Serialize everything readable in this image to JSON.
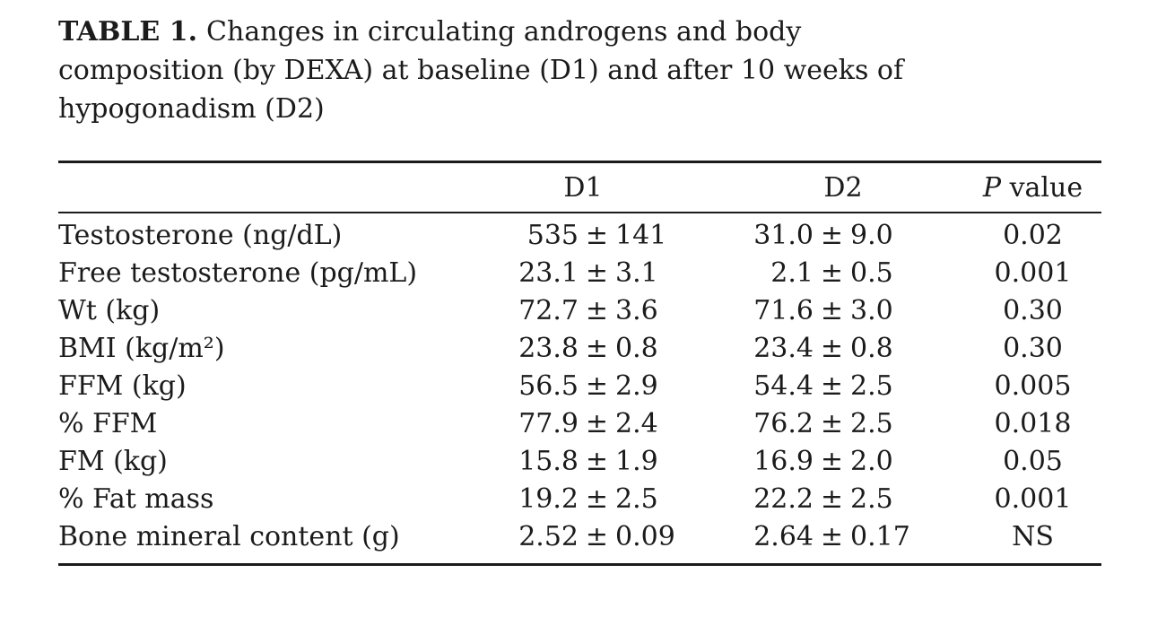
{
  "page": {
    "background": "#ffffff",
    "text_color": "#1b1b1b"
  },
  "table": {
    "caption": {
      "bold_label": "TABLE 1.",
      "full_text": "Changes in circulating androgens and body composition (by DEXA) at baseline (D1) and after 10 weeks of hypogonadism (D2)",
      "line1_rest": "Changes in circulating androgens and body",
      "line2": "composition (by DEXA) at baseline (D1) and after 10 weeks of",
      "line3": "hypogonadism (D2)"
    },
    "columns": {
      "label": "",
      "d1": "D1",
      "d2": "D2",
      "p_italic": "P",
      "p_rest": " value"
    },
    "pm_symbol": "±",
    "rows": [
      {
        "label": "Testosterone (ng/dL)",
        "d1_mean": "535",
        "d1_sd": "141",
        "d2_mean": "31.0",
        "d2_sd": "9.0",
        "p": "0.02"
      },
      {
        "label": "Free testosterone (pg/mL)",
        "d1_mean": "23.1",
        "d1_sd": "3.1",
        "d2_mean": "2.1",
        "d2_sd": "0.5",
        "p": "0.001"
      },
      {
        "label": "Wt (kg)",
        "d1_mean": "72.7",
        "d1_sd": "3.6",
        "d2_mean": "71.6",
        "d2_sd": "3.0",
        "p": "0.30"
      },
      {
        "label": "BMI (kg/m²)",
        "d1_mean": "23.8",
        "d1_sd": "0.8",
        "d2_mean": "23.4",
        "d2_sd": "0.8",
        "p": "0.30"
      },
      {
        "label": "FFM (kg)",
        "d1_mean": "56.5",
        "d1_sd": "2.9",
        "d2_mean": "54.4",
        "d2_sd": "2.5",
        "p": "0.005"
      },
      {
        "label": "% FFM",
        "d1_mean": "77.9",
        "d1_sd": "2.4",
        "d2_mean": "76.2",
        "d2_sd": "2.5",
        "p": "0.018"
      },
      {
        "label": "FM (kg)",
        "d1_mean": "15.8",
        "d1_sd": "1.9",
        "d2_mean": "16.9",
        "d2_sd": "2.0",
        "p": "0.05"
      },
      {
        "label": "% Fat mass",
        "d1_mean": "19.2",
        "d1_sd": "2.5",
        "d2_mean": "22.2",
        "d2_sd": "2.5",
        "p": "0.001"
      },
      {
        "label": "Bone mineral content (g)",
        "d1_mean": "2.52",
        "d1_sd": "0.09",
        "d2_mean": "2.64",
        "d2_sd": "0.17",
        "p": "NS"
      }
    ]
  }
}
